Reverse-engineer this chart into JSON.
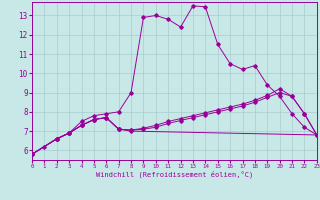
{
  "background_color": "#c8e8e8",
  "grid_color": "#aacccc",
  "line_color": "#990099",
  "xlabel": "Windchill (Refroidissement éolien,°C)",
  "xlim": [
    0,
    23
  ],
  "ylim": [
    5.5,
    13.7
  ],
  "yticks": [
    6,
    7,
    8,
    9,
    10,
    11,
    12,
    13
  ],
  "xticks": [
    0,
    1,
    2,
    3,
    4,
    5,
    6,
    7,
    8,
    9,
    10,
    11,
    12,
    13,
    14,
    15,
    16,
    17,
    18,
    19,
    20,
    21,
    22,
    23
  ],
  "series1_x": [
    0,
    1,
    2,
    3,
    4,
    5,
    6,
    7,
    8,
    9,
    10,
    11,
    12,
    13,
    14,
    15,
    16,
    17,
    18,
    19,
    20,
    21,
    22,
    23
  ],
  "series1_y": [
    5.8,
    6.2,
    6.6,
    6.9,
    7.5,
    7.8,
    7.9,
    8.0,
    9.0,
    12.9,
    13.0,
    12.8,
    12.4,
    13.5,
    13.45,
    11.5,
    10.5,
    10.2,
    10.4,
    9.4,
    8.8,
    7.9,
    7.2,
    6.8
  ],
  "series2_x": [
    0,
    2,
    3,
    4,
    5,
    6,
    7,
    8,
    9,
    10,
    11,
    12,
    13,
    14,
    15,
    16,
    17,
    18,
    19,
    20,
    21,
    22,
    23
  ],
  "series2_y": [
    5.8,
    6.6,
    6.9,
    7.3,
    7.6,
    7.7,
    7.1,
    7.05,
    7.1,
    7.2,
    7.4,
    7.55,
    7.7,
    7.85,
    8.0,
    8.15,
    8.3,
    8.5,
    8.75,
    9.0,
    8.8,
    7.9,
    6.8
  ],
  "series3_x": [
    0,
    2,
    3,
    4,
    5,
    6,
    7,
    8,
    9,
    10,
    11,
    12,
    13,
    14,
    15,
    16,
    17,
    18,
    19,
    20,
    21,
    22,
    23
  ],
  "series3_y": [
    5.8,
    6.6,
    6.9,
    7.3,
    7.6,
    7.7,
    7.1,
    7.05,
    7.15,
    7.3,
    7.5,
    7.65,
    7.8,
    7.95,
    8.1,
    8.25,
    8.4,
    8.6,
    8.85,
    9.2,
    8.8,
    7.9,
    6.8
  ],
  "series4_x": [
    0,
    2,
    3,
    4,
    5,
    6,
    7,
    8,
    23
  ],
  "series4_y": [
    5.8,
    6.6,
    6.9,
    7.3,
    7.6,
    7.7,
    7.1,
    7.0,
    6.8
  ]
}
